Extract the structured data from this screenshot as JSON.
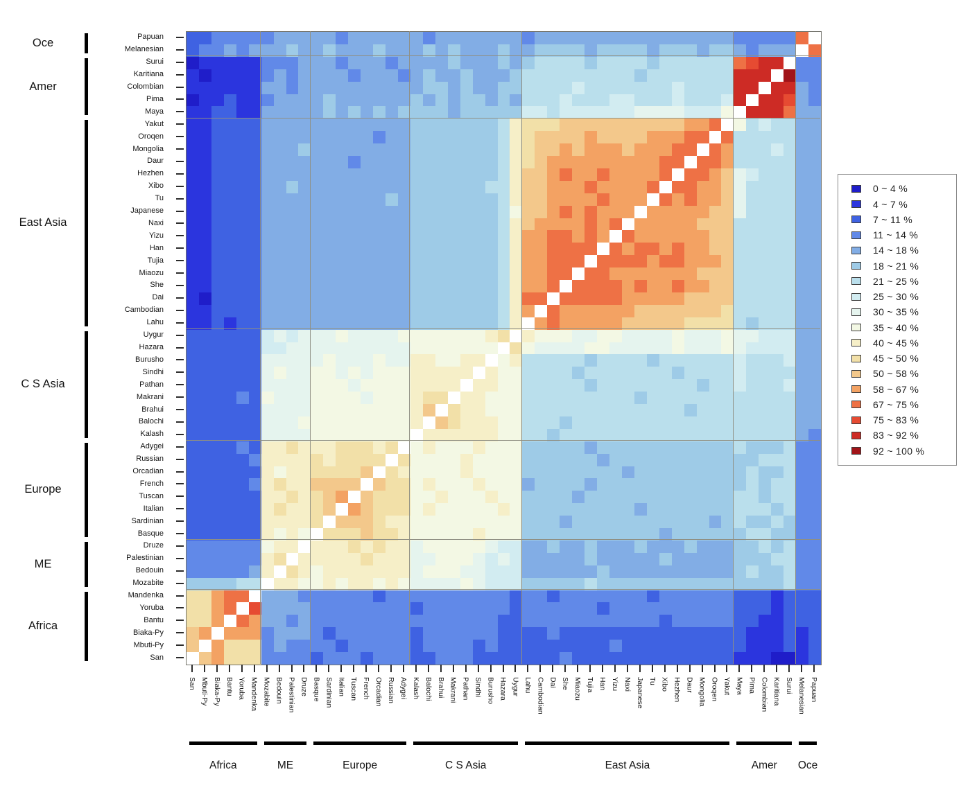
{
  "chart_data": {
    "type": "heatmap",
    "unit": "%",
    "legend_position": "right",
    "diagonal_color": "#ffffff",
    "palette_chars": "0123456789abcdefgh",
    "diagonal_char": "x",
    "bins": [
      {
        "label": "0 ~ 4  %",
        "color": "#1f1dc9"
      },
      {
        "label": "4 ~ 7  %",
        "color": "#2b35de"
      },
      {
        "label": "7 ~ 11  %",
        "color": "#3f62e2"
      },
      {
        "label": "11 ~ 14  %",
        "color": "#6189e8"
      },
      {
        "label": "14 ~ 18  %",
        "color": "#82ade5"
      },
      {
        "label": "18 ~ 21  %",
        "color": "#9ecbe7"
      },
      {
        "label": "21 ~ 25  %",
        "color": "#badfec"
      },
      {
        "label": "25 ~ 30  %",
        "color": "#d2ecf1"
      },
      {
        "label": "30 ~ 35  %",
        "color": "#e5f4ee"
      },
      {
        "label": "35 ~ 40  %",
        "color": "#f3f8e4"
      },
      {
        "label": "40 ~ 45  %",
        "color": "#f6efc8"
      },
      {
        "label": "45 ~ 50  %",
        "color": "#f2e0a8"
      },
      {
        "label": "50 ~ 58  %",
        "color": "#f3c88b"
      },
      {
        "label": "58 ~ 67  %",
        "color": "#f3a263"
      },
      {
        "label": "67 ~ 75  %",
        "color": "#ee7145"
      },
      {
        "label": "75 ~ 83  %",
        "color": "#e64b32"
      },
      {
        "label": "83 ~ 92  %",
        "color": "#cd2b25"
      },
      {
        "label": "92 ~ 100  %",
        "color": "#a11419"
      }
    ],
    "rows": [
      "Papuan",
      "Melanesian",
      "Surui",
      "Karitiana",
      "Colombian",
      "Pima",
      "Maya",
      "Yakut",
      "Oroqen",
      "Mongolia",
      "Daur",
      "Hezhen",
      "Xibo",
      "Tu",
      "Japanese",
      "Naxi",
      "Yizu",
      "Han",
      "Tujia",
      "Miaozu",
      "She",
      "Dai",
      "Cambodian",
      "Lahu",
      "Uygur",
      "Hazara",
      "Burusho",
      "Sindhi",
      "Pathan",
      "Makrani",
      "Brahui",
      "Balochi",
      "Kalash",
      "Adygei",
      "Russian",
      "Orcadian",
      "French",
      "Tuscan",
      "Italian",
      "Sardinian",
      "Basque",
      "Druze",
      "Palestinian",
      "Bedouin",
      "Mozabite",
      "Mandenka",
      "Yoruba",
      "Bantu",
      "Biaka-Py",
      "Mbuti-Py",
      "San"
    ],
    "cols": [
      "San",
      "Mbuti-Py",
      "Biaka-Py",
      "Bantu",
      "Yoruba",
      "Mandenka",
      "Mozabite",
      "Bedouin",
      "Palestinian",
      "Druze",
      "Basque",
      "Sardinian",
      "Italian",
      "Tuscan",
      "French",
      "Orcadian",
      "Russian",
      "Adygei",
      "Kalash",
      "Balochi",
      "Brahui",
      "Makrani",
      "Pathan",
      "Sindhi",
      "Burusho",
      "Hazara",
      "Uygur",
      "Lahu",
      "Cambodian",
      "Dai",
      "She",
      "Miaozu",
      "Tujia",
      "Han",
      "Yizu",
      "Naxi",
      "Japanese",
      "Tu",
      "Xibo",
      "Hezhen",
      "Daur",
      "Mongolia",
      "Oroqen",
      "Yakut",
      "Maya",
      "Pima",
      "Colombian",
      "Karitiana",
      "Surui",
      "Melanesian",
      "Papuan"
    ],
    "row_groups": [
      {
        "label": "Oce",
        "count": 2
      },
      {
        "label": "Amer",
        "count": 5
      },
      {
        "label": "East Asia",
        "count": 17
      },
      {
        "label": "C S Asia",
        "count": 9
      },
      {
        "label": "Europe",
        "count": 8
      },
      {
        "label": "ME",
        "count": 4
      },
      {
        "label": "Africa",
        "count": 6
      }
    ],
    "col_groups": [
      {
        "label": "Africa",
        "count": 6
      },
      {
        "label": "ME",
        "count": 4
      },
      {
        "label": "Europe",
        "count": 8
      },
      {
        "label": "C S Asia",
        "count": 9
      },
      {
        "label": "East Asia",
        "count": 17
      },
      {
        "label": "Amer",
        "count": 5
      },
      {
        "label": "Oce",
        "count": 2
      }
    ],
    "matrix_segments": [
      [
        "223333",
        "3444",
        "44344444",
        "434444444",
        "34444444444444444",
        "33333",
        "ex"
      ],
      [
        "233434",
        "4454",
        "45444544",
        "454544454",
        "45555455554555455",
        "43444",
        "xe"
      ],
      [
        "011111",
        "3334",
        "44344434",
        "444544454",
        "56666566665666666",
        "efggx",
        "33"
      ],
      [
        "101111",
        "3434",
        "44434443",
        "454454445",
        "66666666656666666",
        "gggxh",
        "33"
      ],
      [
        "111111",
        "4434",
        "44444444",
        "455454455",
        "66667666666676666",
        "ggxgg",
        "43"
      ],
      [
        "011211",
        "3444",
        "45444444",
        "545455454",
        "66676667766676667",
        "gxggf",
        "43"
      ],
      [
        "112211",
        "4444",
        "45454545",
        "555455555",
        "77677777788887779",
        "xggge",
        "44"
      ],
      [
        "112222",
        "4444",
        "44444444",
        "55555556a",
        "bbbccccccccccddex",
        "96766",
        "44"
      ],
      [
        "112222",
        "4444",
        "44444344",
        "55555556a",
        "bccccdccccdddeexe",
        "66666",
        "44"
      ],
      [
        "112222",
        "4445",
        "44444444",
        "55555556a",
        "bccdcdddcdddeexed",
        "66676",
        "44"
      ],
      [
        "112222",
        "4444",
        "44434444",
        "55555556a",
        "bcdddddddddeexeed",
        "66666",
        "44"
      ],
      [
        "112222",
        "4444",
        "44444444",
        "55555556a",
        "ccdeddeddddexeedc",
        "87666",
        "44"
      ],
      [
        "112222",
        "4454",
        "44444444",
        "55555566a",
        "ccdddeddddexeeddc",
        "86666",
        "44"
      ],
      [
        "112222",
        "4444",
        "44444454",
        "55555556a",
        "ccddddedddxededdc",
        "86666",
        "44"
      ],
      [
        "112222",
        "4444",
        "44444444",
        "555555569",
        "ccdededddxdddddcc",
        "86666",
        "44"
      ],
      [
        "112222",
        "4444",
        "44444444",
        "55555556a",
        "cddddedexdddddccc",
        "66666",
        "44"
      ],
      [
        "112222",
        "4444",
        "44444444",
        "55555556a",
        "ddeededxeddddddcc",
        "66666",
        "44"
      ],
      [
        "112222",
        "4444",
        "44444444",
        "55555556a",
        "ddeeeexedeededdcc",
        "66666",
        "44"
      ],
      [
        "112222",
        "4444",
        "44444444",
        "55555556a",
        "ddeeexeeeedeedddc",
        "66666",
        "44"
      ],
      [
        "112222",
        "4444",
        "44444444",
        "55555556a",
        "ddeexeedddddddccc",
        "66666",
        "44"
      ],
      [
        "112222",
        "4444",
        "44444444",
        "55555556a",
        "ddexeeeededdeddcc",
        "66666",
        "44"
      ],
      [
        "102222",
        "4444",
        "44444444",
        "55555556a",
        "eexeeeeedddddcccc",
        "66666",
        "44"
      ],
      [
        "112222",
        "4444",
        "44444444",
        "55555556a",
        "dxeddddddcccccccb",
        "66666",
        "44"
      ],
      [
        "112122",
        "4444",
        "44444444",
        "55555556a",
        "xdedddddcccccbbbb",
        "65666",
        "44"
      ],
      [
        "222222",
        "7878",
        "88988889",
        "999999abx",
        "a9998899888898889",
        "88777",
        "44"
      ],
      [
        "222222",
        "7788",
        "88888888",
        "9999999xb",
        "98888998888898889",
        "87777",
        "44"
      ],
      [
        "222222",
        "8888",
        "89888988",
        "aa99aax9a",
        "66666566665666666",
        "76667",
        "44"
      ],
      [
        "222222",
        "8988",
        "99898999",
        "aaaaaxa99",
        "66665666666656666",
        "76666",
        "44"
      ],
      [
        "222222",
        "8888",
        "99989999",
        "aaaaxaa99",
        "66666566666666566",
        "76667",
        "44"
      ],
      [
        "222232",
        "9888",
        "99998999",
        "abbxaa999",
        "66666666656666666",
        "66666",
        "44"
      ],
      [
        "222222",
        "8888",
        "99999999",
        "acxbaa999",
        "66666666666665666",
        "66666",
        "44"
      ],
      [
        "222222",
        "8889",
        "99999999",
        "axcbaaa99",
        "66656666666666666",
        "66666",
        "44"
      ],
      [
        "222222",
        "8888",
        "99999999",
        "xaaaaaa99",
        "66566666666666666",
        "66666",
        "43"
      ],
      [
        "222232",
        "aaba",
        "aabbbabx",
        "9a999a999",
        "55555455555555555",
        "65556",
        "33"
      ],
      [
        "222223",
        "aaaa",
        "babbbbxb",
        "9999a9999",
        "55555545555555555",
        "55666",
        "33"
      ],
      [
        "222222",
        "a9aa",
        "bbbbcxba",
        "9999a9999",
        "55555555455555555",
        "56556",
        "33"
      ],
      [
        "222223",
        "abaa",
        "ccccxcbb",
        "9a999a999",
        "45555455555555555",
        "56566",
        "33"
      ],
      [
        "222222",
        "aaba",
        "bcdxcbbb",
        "99a999a99",
        "55554555555555555",
        "66566",
        "33"
      ],
      [
        "222222",
        "abaa",
        "bcxdcbbb",
        "9a99999a9",
        "55555555545555555",
        "66656",
        "33"
      ],
      [
        "222222",
        "aaaa",
        "bxcccbaa",
        "999999999",
        "55545555555555545",
        "65565",
        "33"
      ],
      [
        "222222",
        "a9a9",
        "xbbbcbba",
        "99999a999",
        "55555555555455555",
        "56655",
        "33"
      ],
      [
        "333333",
        "9aax",
        "aaababaa",
        "899999877",
        "44544544454445444",
        "55656",
        "33"
      ],
      [
        "333333",
        "abxa",
        "aaaabaaa",
        "889998787",
        "44444544444544444",
        "55566",
        "33"
      ],
      [
        "333334",
        "axba",
        "9aaaaaaa",
        "899988777",
        "44444454444444444",
        "56556",
        "33"
      ],
      [
        "555566",
        "xaa9",
        "9a9aa9a9",
        "888898777",
        "55555655555555555",
        "55556",
        "33"
      ],
      [
        "bbdeex",
        "4443",
        "33333233",
        "333333332",
        "33233333332333333",
        "22212",
        "22"
      ],
      [
        "bbdexf",
        "4444",
        "33333333",
        "233333332",
        "33333323333333333",
        "22212",
        "22"
      ],
      [
        "bbdxed",
        "4434",
        "33333333",
        "333333322",
        "33333333333233333",
        "22112",
        "22"
      ],
      [
        "cdxddd",
        "3444",
        "32333333",
        "233333322",
        "22322222222222222",
        "21112",
        "12"
      ],
      [
        "cxdbbb",
        "3433",
        "33233333",
        "233332322",
        "22222223222222222",
        "21112",
        "12"
      ],
      [
        "xcdbbb",
        "3333",
        "23332333",
        "223332222",
        "22232222222222222",
        "11100",
        "12"
      ]
    ]
  }
}
